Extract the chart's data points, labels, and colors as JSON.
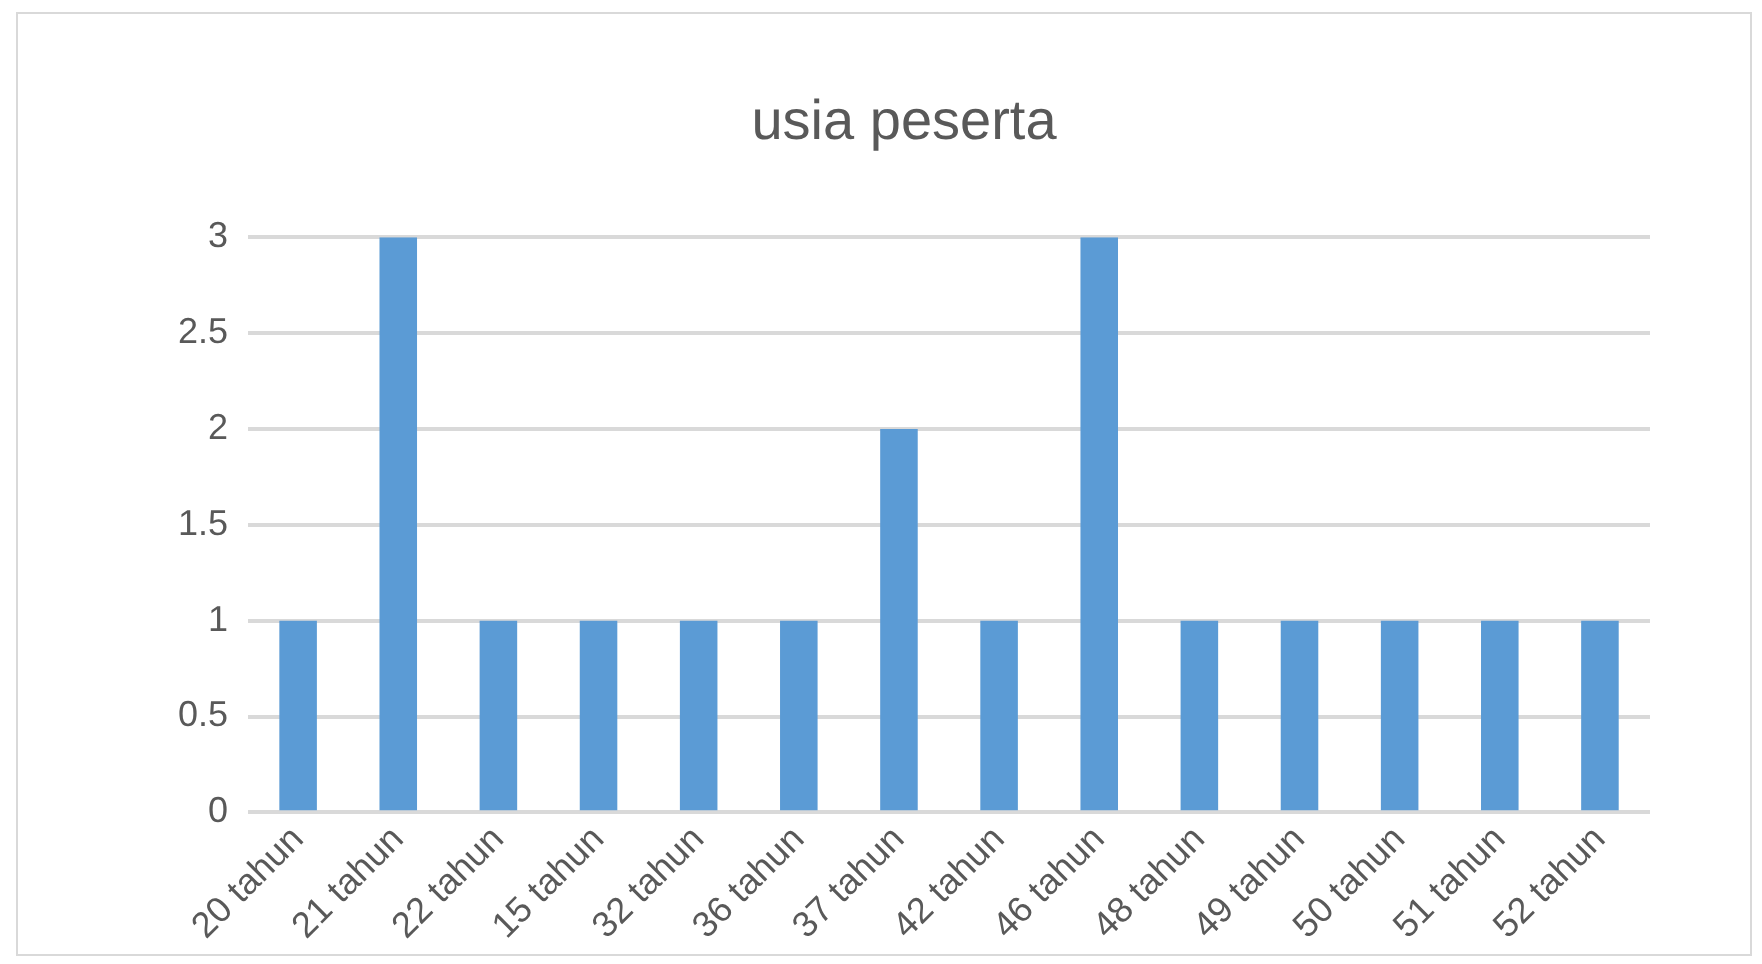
{
  "chart_data": {
    "type": "bar",
    "title": "usia peserta",
    "categories": [
      "20 tahun",
      "21 tahun",
      "22 tahun",
      "15 tahun",
      "32 tahun",
      "36 tahun",
      "37 tahun",
      "42 tahun",
      "46 tahun",
      "48 tahun",
      "49 tahun",
      "50 tahun",
      "51 tahun",
      "52 tahun"
    ],
    "values": [
      1,
      3,
      1,
      1,
      1,
      1,
      2,
      1,
      3,
      1,
      1,
      1,
      1,
      1
    ],
    "color": "#5b9bd5",
    "ylim": [
      0,
      3
    ],
    "yticks": [
      0,
      0.5,
      1,
      1.5,
      2,
      2.5,
      3
    ],
    "grid": "y",
    "legend": false
  }
}
